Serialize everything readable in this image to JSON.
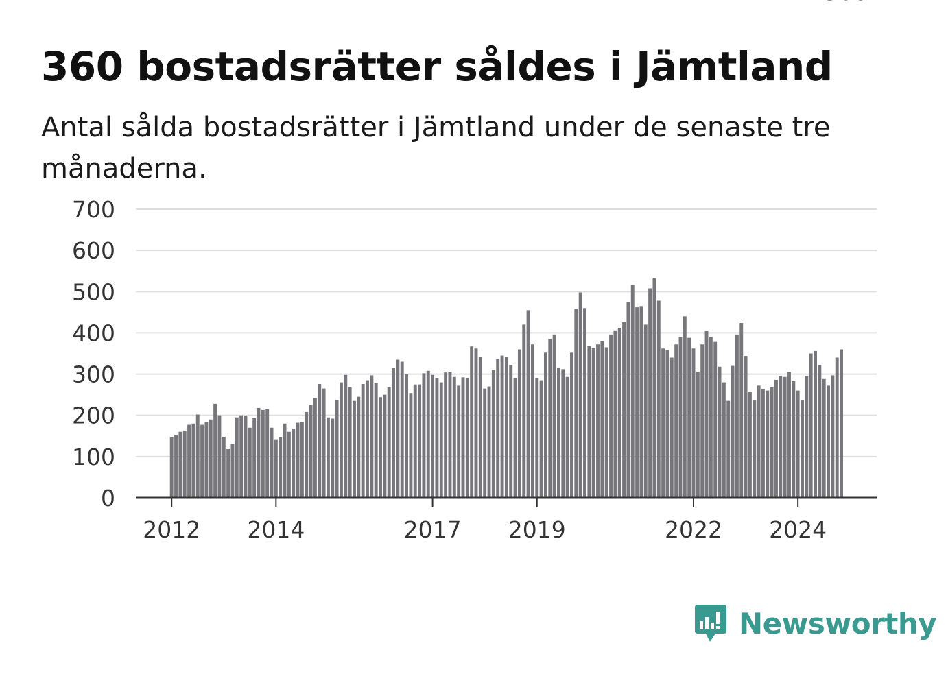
{
  "title": "360 bostadsrätter såldes i Jämtland",
  "subtitle": "Antal sålda bostadsrätter i Jämtland under de senaste tre månaderna.",
  "brand": {
    "name": "Newsworthy",
    "icon": "newsworthy-logo-icon",
    "color": "#3a9a8f"
  },
  "colors": {
    "bar": "#76767b",
    "highlight": "#1a9e96",
    "grid": "#dddddd",
    "axis": "#333333"
  },
  "chart_data": {
    "type": "bar",
    "title": "",
    "xlabel": "",
    "ylabel": "",
    "ylim": [
      0,
      700
    ],
    "y_ticks": [
      "0",
      "100",
      "200",
      "300",
      "400",
      "500",
      "600",
      "700"
    ],
    "x_ticks": [
      {
        "label": "2012",
        "index": 0
      },
      {
        "label": "2014",
        "index": 24
      },
      {
        "label": "2017",
        "index": 60
      },
      {
        "label": "2019",
        "index": 84
      },
      {
        "label": "2022",
        "index": 120
      },
      {
        "label": "2024",
        "index": 144
      }
    ],
    "grid": true,
    "highlight_index": 155,
    "highlight_label": "360",
    "start": "2012-01",
    "frequency": "monthly",
    "values": [
      148,
      152,
      160,
      163,
      177,
      180,
      202,
      177,
      183,
      190,
      228,
      200,
      148,
      118,
      131,
      195,
      200,
      198,
      170,
      193,
      218,
      213,
      216,
      170,
      142,
      147,
      180,
      160,
      168,
      182,
      184,
      208,
      225,
      242,
      276,
      265,
      195,
      192,
      237,
      280,
      298,
      268,
      235,
      245,
      276,
      285,
      297,
      278,
      244,
      250,
      268,
      315,
      335,
      330,
      300,
      254,
      275,
      275,
      302,
      308,
      298,
      290,
      280,
      304,
      305,
      293,
      272,
      292,
      290,
      367,
      362,
      342,
      265,
      270,
      310,
      336,
      345,
      342,
      322,
      290,
      360,
      420,
      455,
      372,
      290,
      285,
      352,
      385,
      396,
      316,
      312,
      293,
      352,
      458,
      498,
      460,
      368,
      363,
      372,
      380,
      365,
      396,
      406,
      412,
      426,
      475,
      516,
      462,
      465,
      420,
      508,
      532,
      478,
      362,
      358,
      340,
      372,
      390,
      440,
      388,
      362,
      306,
      372,
      405,
      390,
      378,
      318,
      280,
      235,
      320,
      396,
      424,
      344,
      256,
      236,
      272,
      264,
      260,
      268,
      286,
      296,
      293,
      305,
      283,
      260,
      236,
      296,
      350,
      356,
      322,
      288,
      272,
      297,
      340,
      360
    ]
  }
}
